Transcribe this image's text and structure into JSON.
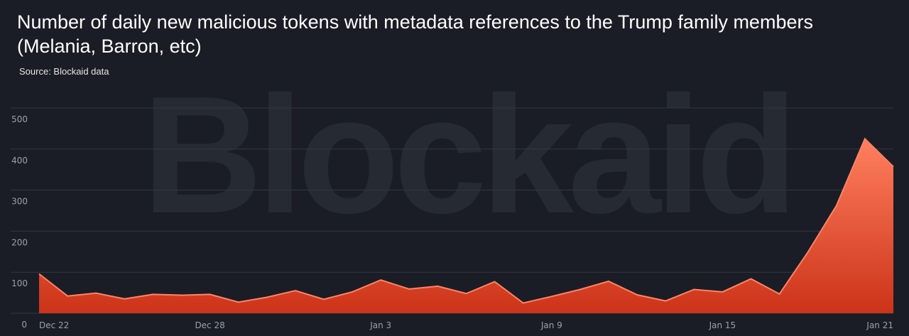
{
  "chart_data": {
    "type": "area",
    "title": "Number of daily new malicious tokens with metadata references to the Trump family members (Melania, Barron, etc)",
    "subtitle": "Source: Blockaid data",
    "watermark": "Blockaid",
    "xlabel": "",
    "ylabel": "",
    "ylim": [
      0,
      500
    ],
    "yticks": [
      0,
      100,
      200,
      300,
      400,
      500
    ],
    "xtick_labels": [
      "Dec 22",
      "Dec 28",
      "Jan 3",
      "Jan 9",
      "Jan 15",
      "Jan 21"
    ],
    "grid": true,
    "colors": {
      "line": "#ff8466",
      "fill_top": "#ff7f5e",
      "fill_bottom": "#cc3319",
      "grid": "#343844"
    },
    "x": [
      "Dec 22",
      "Dec 23",
      "Dec 24",
      "Dec 25",
      "Dec 26",
      "Dec 27",
      "Dec 28",
      "Dec 29",
      "Dec 30",
      "Dec 31",
      "Jan 1",
      "Jan 2",
      "Jan 3",
      "Jan 4",
      "Jan 5",
      "Jan 6",
      "Jan 7",
      "Jan 8",
      "Jan 9",
      "Jan 10",
      "Jan 11",
      "Jan 12",
      "Jan 13",
      "Jan 14",
      "Jan 15",
      "Jan 16",
      "Jan 17",
      "Jan 18",
      "Jan 19",
      "Jan 20",
      "Jan 21"
    ],
    "values": [
      96,
      42,
      49,
      35,
      46,
      44,
      46,
      27,
      39,
      55,
      34,
      52,
      81,
      59,
      66,
      48,
      77,
      25,
      41,
      58,
      78,
      45,
      30,
      58,
      52,
      84,
      47,
      149,
      262,
      425,
      357
    ]
  }
}
